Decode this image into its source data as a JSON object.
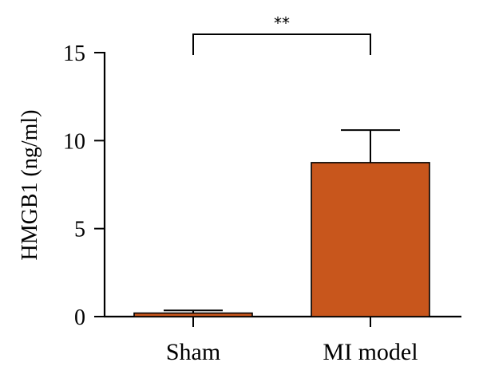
{
  "chart_data": {
    "type": "bar",
    "categories": [
      "Sham",
      "MI model"
    ],
    "values": [
      0.2,
      8.75
    ],
    "errors": [
      0.15,
      1.85
    ],
    "ylabel": "HMGB1 (ng/ml)",
    "ylim": [
      0,
      15
    ],
    "yticks": [
      0,
      5,
      10,
      15
    ],
    "bar_color": "#c8561c",
    "significance": {
      "label": "**",
      "between": [
        "Sham",
        "MI model"
      ]
    },
    "grid": false
  }
}
